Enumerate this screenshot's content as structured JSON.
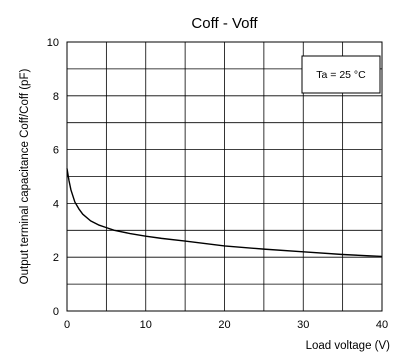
{
  "chart_data": {
    "type": "line",
    "title": "Coff - Voff",
    "xlabel": "Load voltage (V)",
    "ylabel": "Output terminal capacitance Coff/Coff (pF)",
    "xlim": [
      0,
      40
    ],
    "ylim": [
      0,
      10
    ],
    "x_ticks": [
      "0",
      "10",
      "20",
      "30",
      "40"
    ],
    "y_ticks": [
      "0",
      "2",
      "4",
      "6",
      "8",
      "10"
    ],
    "grid": true,
    "annotation": "Ta = 25 °C",
    "series": [
      {
        "x": [
          0,
          0.25,
          0.5,
          1,
          1.5,
          2,
          3,
          4,
          5,
          6,
          8,
          10,
          12,
          15,
          20,
          25,
          30,
          35,
          40
        ],
        "y": [
          5.3,
          4.85,
          4.5,
          4.05,
          3.8,
          3.6,
          3.35,
          3.2,
          3.1,
          3.0,
          2.88,
          2.78,
          2.7,
          2.6,
          2.42,
          2.3,
          2.2,
          2.1,
          2.03
        ]
      }
    ],
    "colors": {
      "line": "#000000",
      "grid": "#000000",
      "background": "#ffffff"
    }
  }
}
